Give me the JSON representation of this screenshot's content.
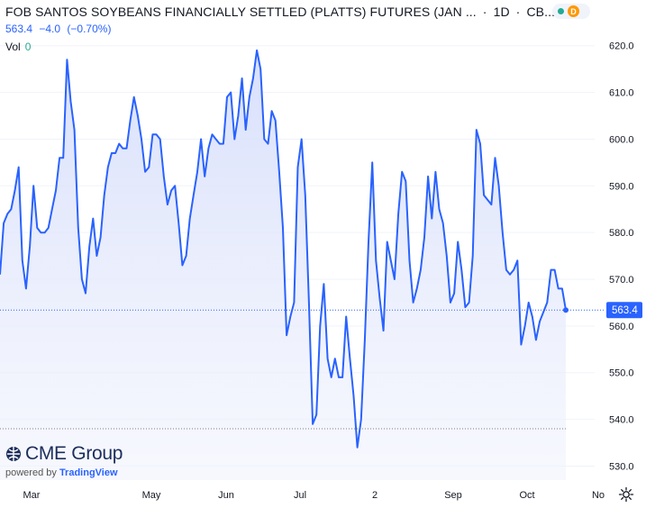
{
  "header": {
    "title": "FOB SANTOS SOYBEANS FINANCIALLY SETTLED (PLATTS) FUTURES (JAN ...",
    "interval": "1D",
    "exchange": "CB...",
    "price": "563.4",
    "change": "−4.0",
    "change_pct": "(−0.70%)",
    "vol_label": "Vol",
    "vol_value": "0"
  },
  "status": {
    "market_icon": "green-dot-icon",
    "delay_badge": "D"
  },
  "logo": {
    "name": "CME Group",
    "powered_by": "powered by",
    "provider": "TradingView"
  },
  "colors": {
    "line": "#2962ff",
    "fill_top": "#dfe6fb",
    "price_label_bg": "#2962ff",
    "grid": "#f0f3fa",
    "axis_text": "#131722"
  },
  "chart_data": {
    "type": "area",
    "title": "FOB SANTOS SOYBEANS FINANCIALLY SETTLED (PLATTS) FUTURES (JAN ...",
    "xlabel": "",
    "ylabel": "",
    "ylim": [
      527,
      624
    ],
    "yticks": [
      530,
      540,
      550,
      560,
      570,
      580,
      590,
      600,
      610,
      620
    ],
    "xticks": [
      "Mar",
      "May",
      "Jun",
      "Jul",
      "2",
      "Sep",
      "Oct",
      "No"
    ],
    "last_price": 563.4,
    "last_price_label": "563.4",
    "reference_line": 538.0,
    "grid": true,
    "series": [
      {
        "values": [
          571,
          582,
          584,
          585,
          589,
          594,
          574,
          568,
          577,
          590,
          581,
          580,
          580,
          581,
          585,
          589,
          596,
          596,
          617,
          608,
          602,
          581,
          570,
          567,
          577,
          583,
          575,
          579,
          588,
          594,
          597,
          597,
          599,
          598,
          598,
          604,
          609,
          605,
          600,
          593,
          594,
          601,
          601,
          600,
          592,
          586,
          589,
          590,
          582,
          573,
          575,
          583,
          588,
          593,
          600,
          592,
          598,
          601,
          600,
          599,
          599,
          609,
          610,
          600,
          605,
          613,
          602,
          609,
          613,
          619,
          615,
          600,
          599,
          606,
          604,
          593,
          581,
          558,
          562,
          565,
          594,
          600,
          588,
          565,
          539,
          541,
          560,
          569,
          553,
          549,
          553,
          549,
          549,
          562,
          553,
          545,
          534,
          540,
          557,
          578,
          595,
          574,
          566,
          559,
          578,
          574,
          570,
          584,
          593,
          591,
          574,
          565,
          568,
          572,
          579,
          592,
          583,
          593,
          585,
          582,
          575,
          565,
          567,
          578,
          572,
          564,
          565,
          575,
          602,
          599,
          588,
          587,
          586,
          596,
          590,
          580,
          572,
          571,
          572,
          574,
          556,
          560,
          565,
          562,
          557,
          561,
          563,
          565,
          572,
          572,
          568,
          568,
          563.4
        ]
      }
    ]
  }
}
